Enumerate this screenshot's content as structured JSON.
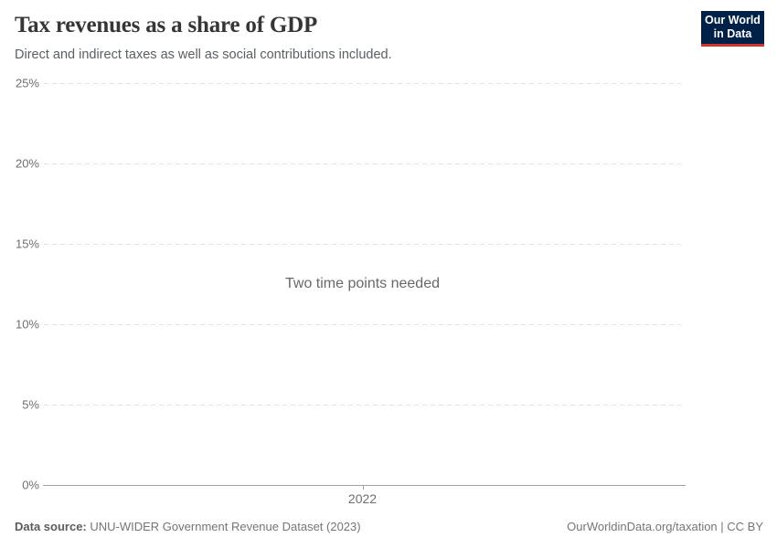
{
  "header": {
    "title": "Tax revenues as a share of GDP",
    "subtitle": "Direct and indirect taxes as well as social contributions included.",
    "logo": {
      "line1": "Our World",
      "line2": "in Data",
      "bg_color": "#002147",
      "accent_color": "#d0342c"
    }
  },
  "chart_data": {
    "type": "line",
    "title": "Tax revenues as a share of GDP",
    "subtitle": "Direct and indirect taxes as well as social contributions included.",
    "message": "Two time points needed",
    "series": [],
    "ylim": [
      0,
      25
    ],
    "yticks": [
      {
        "value": 0,
        "label": "0%"
      },
      {
        "value": 5,
        "label": "5%"
      },
      {
        "value": 10,
        "label": "10%"
      },
      {
        "value": 15,
        "label": "15%"
      },
      {
        "value": 20,
        "label": "20%"
      },
      {
        "value": 25,
        "label": "25%"
      }
    ],
    "xticks": [
      "2022"
    ],
    "grid": true,
    "legend": "none",
    "colors": {
      "gridline": "#e2e2e2",
      "axis": "#a1a1a1",
      "tick_label": "#6e6e6e"
    }
  },
  "footer": {
    "source_label": "Data source:",
    "source_value": "UNU-WIDER Government Revenue Dataset (2023)",
    "credit": "OurWorldinData.org/taxation | CC BY"
  }
}
